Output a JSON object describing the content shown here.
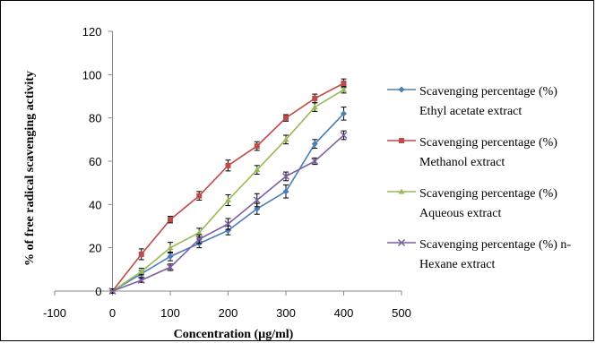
{
  "chart_data": {
    "type": "line",
    "title": "",
    "xlabel": "Concentration (µg/ml)",
    "ylabel": "% of free radical scavenging activity",
    "xlim": [
      -100,
      500
    ],
    "ylim": [
      0,
      120
    ],
    "xticks": [
      -100,
      0,
      100,
      200,
      300,
      400,
      500
    ],
    "yticks": [
      0,
      20,
      40,
      60,
      80,
      100,
      120
    ],
    "grid": false,
    "legend_position": "right",
    "x": [
      0,
      50,
      100,
      150,
      200,
      250,
      300,
      350,
      400
    ],
    "series": [
      {
        "name": "Scavenging percentage (%) Ethyl acetate extract",
        "legend_lines": [
          "Scavenging percentage (%)",
          "Ethyl acetate extract"
        ],
        "color": "#4a7ebb",
        "marker": "diamond",
        "values": [
          0,
          8,
          16,
          22,
          28,
          38,
          46,
          68,
          82
        ],
        "errors": [
          1,
          1.5,
          2,
          2,
          2,
          2.5,
          3,
          2,
          3
        ]
      },
      {
        "name": "Scavenging percentage (%) Methanol extract",
        "legend_lines": [
          "Scavenging percentage (%)",
          "Methanol extract"
        ],
        "color": "#be4b48",
        "marker": "square",
        "values": [
          0,
          17,
          33,
          44,
          58,
          67,
          80,
          89,
          96
        ],
        "errors": [
          1,
          2.5,
          1.5,
          2,
          2.5,
          2,
          1.5,
          2,
          2
        ]
      },
      {
        "name": "Scavenging percentage (%) Aqueous extract",
        "legend_lines": [
          "Scavenging percentage (%)",
          "Aqueous extract"
        ],
        "color": "#98b954",
        "marker": "triangle",
        "values": [
          0,
          9,
          20,
          27,
          42,
          56,
          70,
          85,
          93
        ],
        "errors": [
          1,
          1.5,
          2.5,
          2,
          2.5,
          2,
          2,
          2,
          1.5
        ]
      },
      {
        "name": "Scavenging percentage (%) n-Hexane extract",
        "legend_lines": [
          "Scavenging percentage (%) n-",
          "Hexane extract"
        ],
        "color": "#7d60a0",
        "marker": "x",
        "values": [
          0,
          5,
          11,
          24,
          31,
          42,
          53,
          60,
          72
        ],
        "errors": [
          1,
          1,
          1.5,
          2,
          2.5,
          3,
          2,
          1.5,
          2
        ]
      }
    ]
  }
}
